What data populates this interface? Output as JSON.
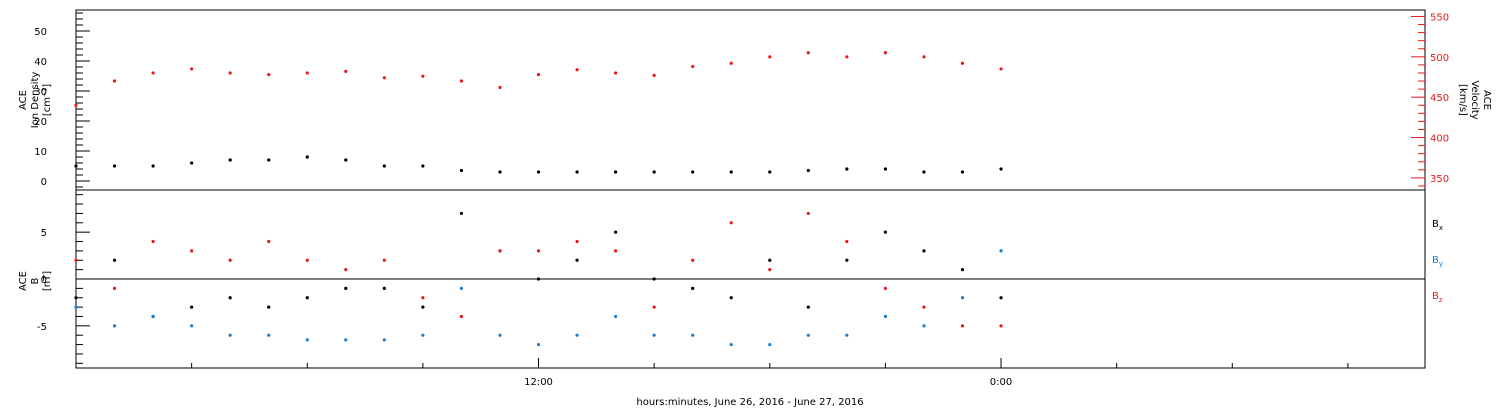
{
  "colors": {
    "black": "#000000",
    "red": "#e8191d",
    "blue": "#1a7fd4"
  },
  "chart_data": [
    {
      "type": "scatter",
      "panel": "top",
      "left_axis": {
        "label_lines": [
          "ACE",
          "Ion Density",
          "[cm⁻³]"
        ],
        "range": [
          -3,
          57
        ],
        "ticks": [
          0,
          10,
          20,
          30,
          40,
          50
        ],
        "tick_labels": [
          "0",
          "10",
          "20",
          "30",
          "40",
          "50"
        ]
      },
      "right_axis": {
        "label_lines": [
          "ACE",
          "Velocity",
          "[km/s]"
        ],
        "range": [
          335,
          558
        ],
        "ticks": [
          350,
          400,
          450,
          500,
          550
        ],
        "tick_labels": [
          "350",
          "400",
          "450",
          "500",
          "550"
        ],
        "color": "#e8191d"
      },
      "series": [
        {
          "axis": "right",
          "color": "#e8191d",
          "x": [
            0,
            1,
            2,
            3,
            4,
            5,
            6,
            7,
            8,
            9,
            10,
            11,
            12,
            13,
            14,
            15,
            16,
            17,
            18,
            19,
            20,
            21,
            22,
            23,
            24
          ],
          "y": [
            440,
            470,
            480,
            485,
            480,
            478,
            480,
            482,
            474,
            476,
            470,
            462,
            478,
            484,
            480,
            477,
            488,
            492,
            500,
            505,
            500,
            505,
            500,
            492,
            485
          ]
        },
        {
          "axis": "left",
          "color": "#000000",
          "x": [
            0,
            1,
            2,
            3,
            4,
            5,
            6,
            7,
            8,
            9,
            10,
            11,
            12,
            13,
            14,
            15,
            16,
            17,
            18,
            19,
            20,
            21,
            22,
            23,
            24
          ],
          "y": [
            5,
            5,
            5,
            6,
            7,
            7,
            8,
            7,
            5,
            5,
            3.5,
            3,
            3,
            3,
            3,
            3,
            3,
            3,
            3,
            3.5,
            4,
            4,
            3,
            3,
            4
          ]
        }
      ]
    },
    {
      "type": "scatter",
      "panel": "bottom",
      "left_axis": {
        "label_lines": [
          "ACE",
          "B",
          "[nT]"
        ],
        "range": [
          -9.5,
          9.5
        ],
        "ticks": [
          -5,
          0,
          5
        ],
        "tick_labels": [
          "-5",
          "0",
          "5"
        ]
      },
      "x_axis": {
        "label": "hours:minutes, June 26, 2016 - June 27, 2016",
        "range": [
          0,
          35
        ],
        "ticks": [
          12,
          24
        ],
        "tick_labels": [
          "12:00",
          "0:00"
        ]
      },
      "series": [
        {
          "name": "Bx",
          "color": "#000000",
          "x": [
            0,
            1,
            2,
            3,
            4,
            5,
            6,
            7,
            8,
            9,
            10,
            11,
            12,
            13,
            14,
            15,
            16,
            17,
            18,
            19,
            20,
            21,
            22,
            23,
            24
          ],
          "y": [
            -2,
            2,
            -4,
            -3,
            -2,
            -3,
            -2,
            -1,
            -1,
            -3,
            7,
            3,
            0,
            2,
            5,
            0,
            -1,
            -2,
            2,
            -3,
            2,
            5,
            3,
            1,
            -2
          ]
        },
        {
          "name": "By",
          "color": "#1a7fd4",
          "x": [
            0,
            1,
            2,
            3,
            4,
            5,
            6,
            7,
            8,
            9,
            10,
            11,
            12,
            13,
            14,
            15,
            16,
            17,
            18,
            19,
            20,
            21,
            22,
            23,
            24
          ],
          "y": [
            -3,
            -5,
            -4,
            -5,
            -6,
            -6,
            -6.5,
            -6.5,
            -6.5,
            -6,
            -1,
            -6,
            -7,
            -6,
            -4,
            -6,
            -6,
            -7,
            -7,
            -6,
            -6,
            -4,
            -5,
            -2,
            3
          ]
        },
        {
          "name": "Bz",
          "color": "#e8191d",
          "x": [
            0,
            1,
            2,
            3,
            4,
            5,
            6,
            7,
            8,
            9,
            10,
            11,
            12,
            13,
            14,
            15,
            16,
            17,
            18,
            19,
            20,
            21,
            22,
            23,
            24
          ],
          "y": [
            2,
            -1,
            4,
            3,
            2,
            4,
            2,
            1,
            2,
            -2,
            -4,
            3,
            3,
            4,
            3,
            -3,
            2,
            6,
            1,
            7,
            4,
            -1,
            -3,
            -5,
            -5
          ]
        }
      ],
      "legend": {
        "placement": "right",
        "entries": [
          {
            "label": "B",
            "sub": "x",
            "color": "#000000"
          },
          {
            "label": "B",
            "sub": "y",
            "color": "#1a7fd4"
          },
          {
            "label": "B",
            "sub": "z",
            "color": "#e8191d"
          }
        ]
      }
    }
  ]
}
